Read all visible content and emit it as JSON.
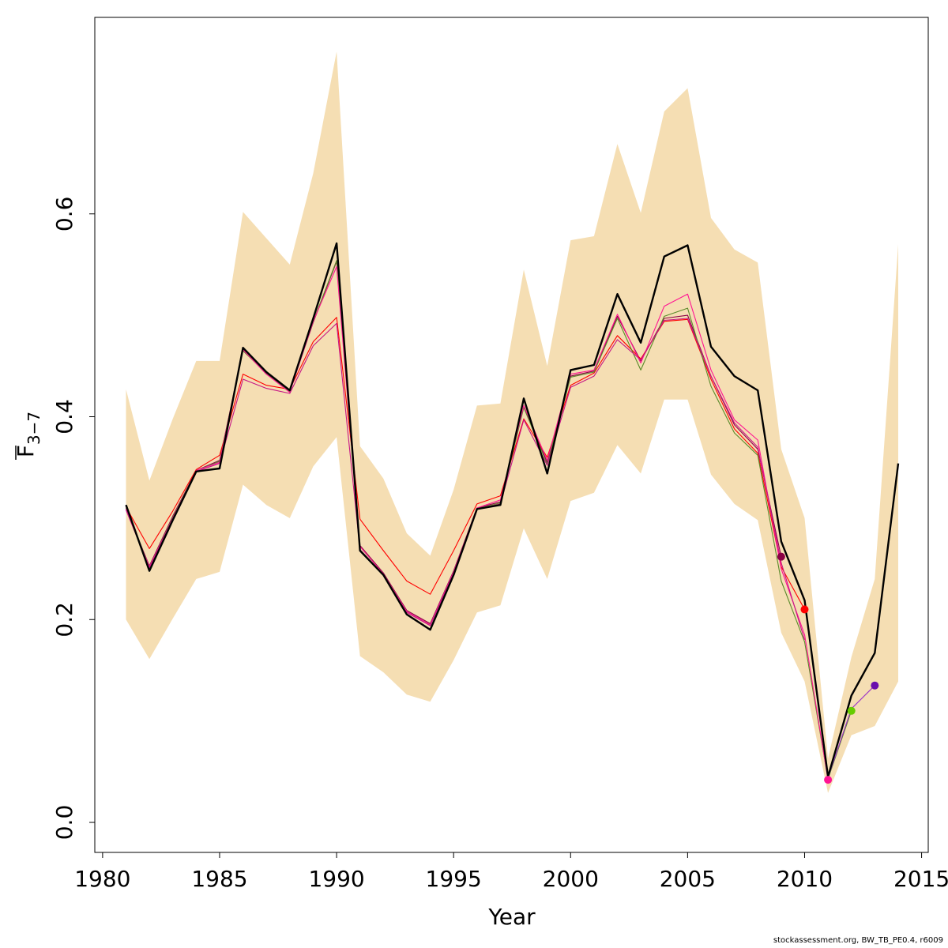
{
  "chart_data": {
    "type": "line",
    "xlabel": "Year",
    "ylabel_main": "F",
    "ylabel_sub": "3−7",
    "xlim": [
      1980,
      2015
    ],
    "ylim": [
      0,
      0.78
    ],
    "xticks": [
      1980,
      1985,
      1990,
      1995,
      2000,
      2005,
      2010,
      2015
    ],
    "yticks": [
      0.0,
      0.2,
      0.4,
      0.6
    ],
    "ytick_labels": [
      "0.0",
      "0.2",
      "0.4",
      "0.6"
    ],
    "grid": false,
    "confidence_band": {
      "color": "#F5DEB3",
      "x": [
        1981,
        1982,
        1983,
        1984,
        1985,
        1986,
        1987,
        1988,
        1989,
        1990,
        1991,
        1992,
        1993,
        1994,
        1995,
        1996,
        1997,
        1998,
        1999,
        2000,
        2001,
        2002,
        2003,
        2004,
        2005,
        2006,
        2007,
        2008,
        2009,
        2010,
        2011,
        2012,
        2013,
        2014
      ],
      "upper": [
        0.427,
        0.337,
        0.398,
        0.455,
        0.455,
        0.602,
        0.576,
        0.55,
        0.64,
        0.76,
        0.371,
        0.339,
        0.285,
        0.263,
        0.328,
        0.411,
        0.413,
        0.545,
        0.45,
        0.574,
        0.578,
        0.669,
        0.601,
        0.701,
        0.724,
        0.596,
        0.565,
        0.552,
        0.368,
        0.3,
        0.063,
        0.163,
        0.24,
        0.57
      ],
      "lower": [
        0.2,
        0.161,
        0.201,
        0.24,
        0.247,
        0.333,
        0.313,
        0.3,
        0.351,
        0.38,
        0.164,
        0.148,
        0.126,
        0.119,
        0.16,
        0.207,
        0.214,
        0.29,
        0.24,
        0.317,
        0.325,
        0.372,
        0.344,
        0.417,
        0.417,
        0.343,
        0.314,
        0.298,
        0.187,
        0.139,
        0.029,
        0.086,
        0.095,
        0.139
      ]
    },
    "series": [
      {
        "color": "#000000",
        "width": 2.4,
        "x": [
          1981,
          1982,
          1983,
          1984,
          1985,
          1986,
          1987,
          1988,
          1989,
          1990,
          1991,
          1992,
          1993,
          1994,
          1995,
          1996,
          1997,
          1998,
          1999,
          2000,
          2001,
          2002,
          2003,
          2004,
          2005,
          2006,
          2007,
          2008,
          2009,
          2010,
          2011,
          2012,
          2013,
          2014
        ],
        "values": [
          0.313,
          0.248,
          0.298,
          0.346,
          0.349,
          0.468,
          0.444,
          0.426,
          0.497,
          0.571,
          0.268,
          0.244,
          0.205,
          0.19,
          0.244,
          0.309,
          0.313,
          0.418,
          0.344,
          0.446,
          0.451,
          0.521,
          0.473,
          0.558,
          0.569,
          0.469,
          0.44,
          0.426,
          0.277,
          0.219,
          0.045,
          0.125,
          0.167,
          0.354
        ]
      },
      {
        "color": "#8B0045",
        "width": 1.1,
        "x": [
          1981,
          1982,
          1983,
          1984,
          1985,
          1986,
          1987,
          1988,
          1989,
          1990,
          1991,
          1992,
          1993,
          1994,
          1995,
          1996,
          1997,
          1998,
          1999,
          2000,
          2001,
          2002,
          2003,
          2004,
          2005,
          2006,
          2007,
          2008,
          2009
        ],
        "values": [
          0.309,
          0.253,
          0.302,
          0.347,
          0.357,
          0.466,
          0.442,
          0.425,
          0.493,
          0.553,
          0.273,
          0.246,
          0.209,
          0.196,
          0.248,
          0.31,
          0.316,
          0.41,
          0.355,
          0.44,
          0.445,
          0.499,
          0.455,
          0.497,
          0.5,
          0.44,
          0.392,
          0.368,
          0.262
        ],
        "end_marker": {
          "x": 2009,
          "y": 0.262
        }
      },
      {
        "color": "#FF0000",
        "width": 1.1,
        "x": [
          1981,
          1982,
          1983,
          1984,
          1985,
          1986,
          1987,
          1988,
          1989,
          1990,
          1991,
          1992,
          1993,
          1994,
          1995,
          1996,
          1997,
          1998,
          1999,
          2000,
          2001,
          2002,
          2003,
          2004,
          2005,
          2006,
          2007,
          2008,
          2009,
          2010
        ],
        "values": [
          0.311,
          0.27,
          0.307,
          0.348,
          0.362,
          0.442,
          0.431,
          0.427,
          0.474,
          0.498,
          0.299,
          0.268,
          0.238,
          0.225,
          0.268,
          0.314,
          0.322,
          0.398,
          0.36,
          0.431,
          0.443,
          0.48,
          0.457,
          0.494,
          0.496,
          0.437,
          0.388,
          0.364,
          0.252,
          0.21
        ],
        "end_marker": {
          "x": 2010,
          "y": 0.21
        }
      },
      {
        "color": "#5A8A2A",
        "width": 1.1,
        "x": [
          1981,
          1982,
          1983,
          1984,
          1985,
          1986,
          1987,
          1988,
          1989,
          1990,
          1991,
          1992,
          1993,
          1994,
          1995,
          1996,
          1997,
          1998,
          1999,
          2000,
          2001,
          2002,
          2003,
          2004,
          2005,
          2006,
          2007,
          2008,
          2009,
          2010,
          2011,
          2012
        ],
        "values": [
          0.31,
          0.252,
          0.301,
          0.347,
          0.356,
          0.465,
          0.443,
          0.425,
          0.494,
          0.554,
          0.272,
          0.245,
          0.208,
          0.195,
          0.247,
          0.309,
          0.315,
          0.409,
          0.353,
          0.439,
          0.444,
          0.497,
          0.446,
          0.499,
          0.507,
          0.43,
          0.384,
          0.362,
          0.238,
          0.178,
          0.043,
          0.11
        ],
        "end_marker": {
          "x": 2012,
          "y": 0.11
        }
      },
      {
        "color": "#FF1493",
        "width": 1.1,
        "x": [
          1981,
          1982,
          1983,
          1984,
          1985,
          1986,
          1987,
          1988,
          1989,
          1990,
          1991,
          1992,
          1993,
          1994,
          1995,
          1996,
          1997,
          1998,
          1999,
          2000,
          2001,
          2002,
          2003,
          2004,
          2005,
          2006,
          2007,
          2008,
          2009,
          2010,
          2011
        ],
        "values": [
          0.309,
          0.252,
          0.3,
          0.347,
          0.355,
          0.466,
          0.442,
          0.424,
          0.494,
          0.548,
          0.272,
          0.245,
          0.208,
          0.195,
          0.247,
          0.31,
          0.318,
          0.411,
          0.357,
          0.442,
          0.446,
          0.501,
          0.453,
          0.509,
          0.521,
          0.446,
          0.397,
          0.377,
          0.25,
          0.185,
          0.042
        ],
        "end_marker": {
          "x": 2011,
          "y": 0.042
        }
      },
      {
        "color": "#C71585",
        "width": 1.1,
        "x": [
          1981,
          1982,
          1983,
          1984,
          1985,
          1986,
          1987,
          1988,
          1989,
          1990,
          1991,
          1992,
          1993,
          1994,
          1995,
          1996,
          1997,
          1998,
          1999,
          2000,
          2001,
          2002,
          2003,
          2004,
          2005,
          2006,
          2007,
          2008,
          2009,
          2010
        ],
        "values": [
          0.308,
          0.251,
          0.3,
          0.346,
          0.354,
          0.437,
          0.428,
          0.423,
          0.47,
          0.492,
          0.269,
          0.244,
          0.207,
          0.194,
          0.246,
          0.309,
          0.314,
          0.397,
          0.352,
          0.429,
          0.44,
          0.476,
          0.456,
          0.495,
          0.497,
          0.44,
          0.394,
          0.37,
          0.256,
          0.18
        ]
      },
      {
        "color": "#9B30C8",
        "width": 1.1,
        "x": [
          2011,
          2012,
          2013
        ],
        "values": [
          0.044,
          0.112,
          0.135
        ],
        "end_marker": {
          "x": 2013,
          "y": 0.135
        }
      }
    ],
    "markers": [
      {
        "x": 2009,
        "y": 0.262,
        "color": "#8B0045"
      },
      {
        "x": 2010,
        "y": 0.21,
        "color": "#FF0000"
      },
      {
        "x": 2011,
        "y": 0.042,
        "color": "#FF1493"
      },
      {
        "x": 2012,
        "y": 0.11,
        "color": "#66CC00"
      },
      {
        "x": 2013,
        "y": 0.135,
        "color": "#6A0DAD"
      }
    ]
  },
  "footer": "stockassessment.org, BW_TB_PE0.4, r6009"
}
